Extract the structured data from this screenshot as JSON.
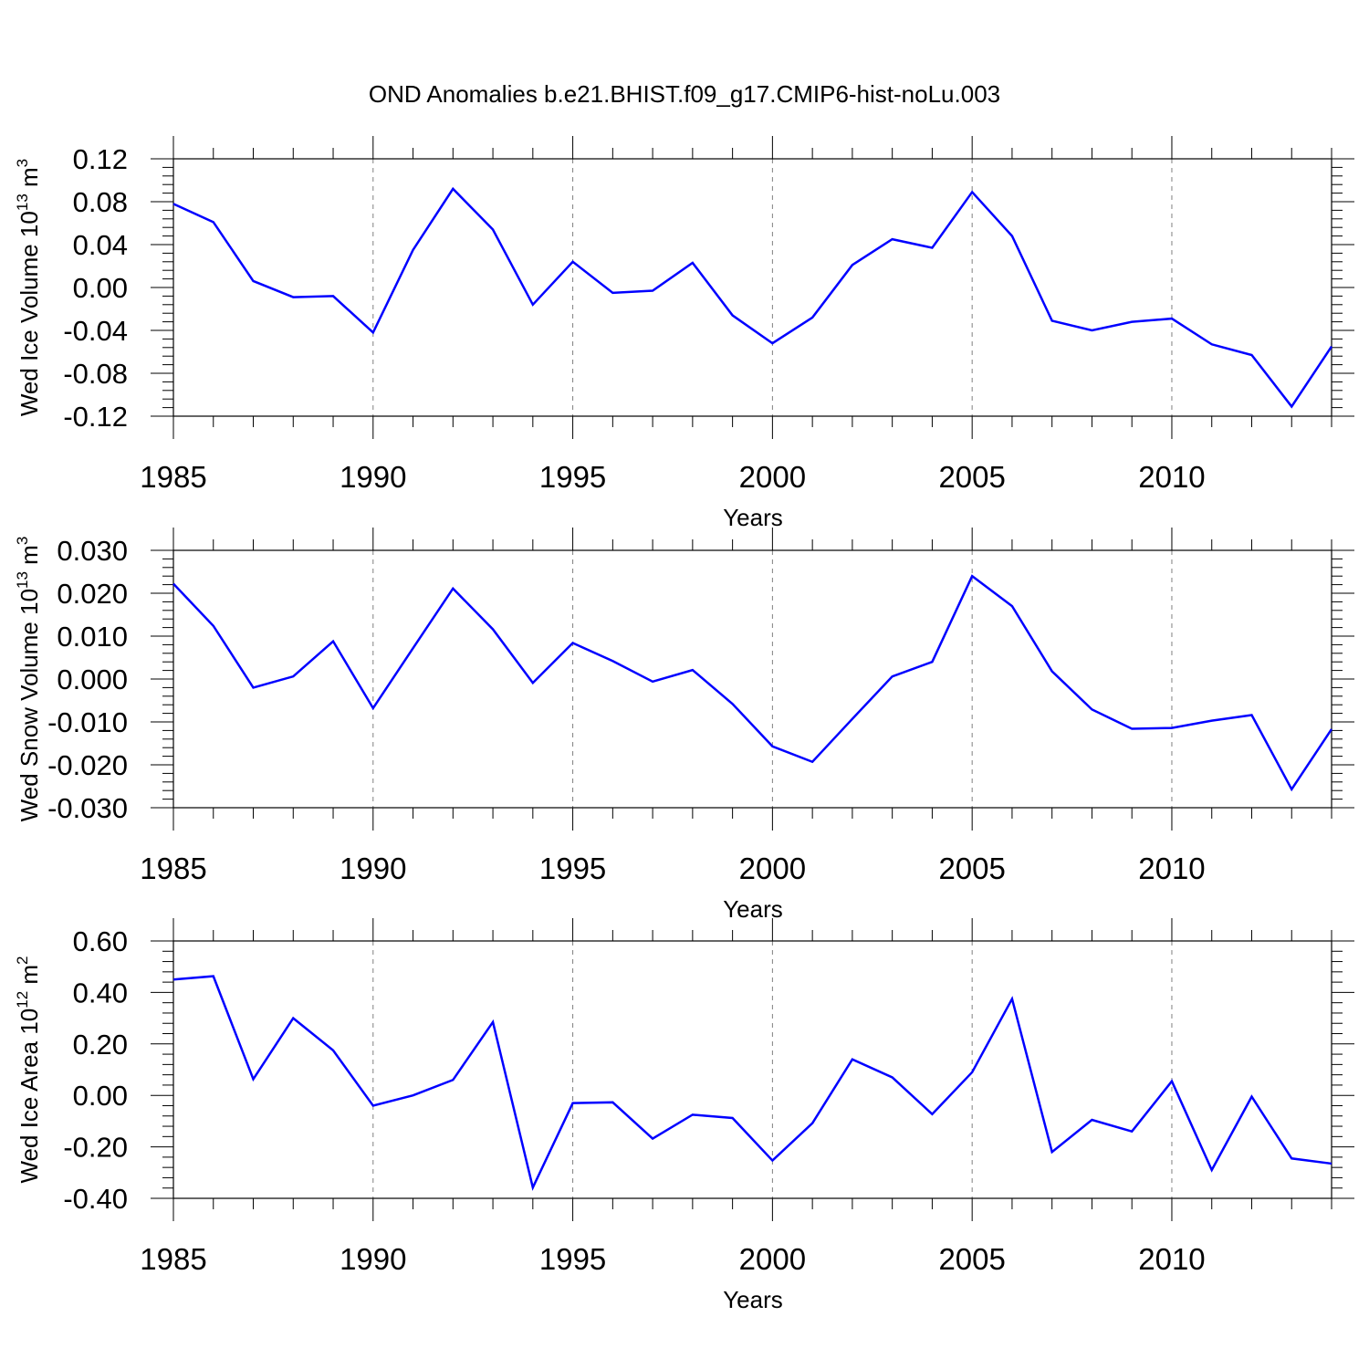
{
  "title": "OND Anomalies b.e21.BHIST.f09_g17.CMIP6-hist-noLu.003",
  "colors": {
    "series": "#0000ff",
    "axis": "#000000",
    "grid": "#808080"
  },
  "chart_data": [
    {
      "type": "line",
      "ylabel": {
        "text": "Wed Ice Volume 10",
        "exp": "13",
        "unit": " m",
        "unit_exp": "3"
      },
      "xlabel": "Years",
      "xlim": [
        1985,
        2014
      ],
      "ylim": [
        -0.12,
        0.12
      ],
      "xticks": [
        "1985",
        "1990",
        "1995",
        "2000",
        "2005",
        "2010"
      ],
      "yticks": [
        "0.12",
        "0.08",
        "0.04",
        "0.00",
        "-0.04",
        "-0.08",
        "-0.12"
      ],
      "ytick_values": [
        0.12,
        0.08,
        0.04,
        0.0,
        -0.04,
        -0.08,
        -0.12
      ],
      "grid": "dashed vertical at major x ticks",
      "series": [
        {
          "x": [
            1985,
            1986,
            1987,
            1988,
            1989,
            1990,
            1991,
            1992,
            1993,
            1994,
            1995,
            1996,
            1997,
            1998,
            1999,
            2000,
            2001,
            2002,
            2003,
            2004,
            2005,
            2006,
            2007,
            2008,
            2009,
            2010,
            2011,
            2012,
            2013,
            2014
          ],
          "values": [
            0.078,
            0.061,
            0.006,
            -0.009,
            -0.008,
            -0.042,
            0.035,
            0.092,
            0.054,
            -0.016,
            0.024,
            -0.005,
            -0.003,
            0.023,
            -0.026,
            -0.052,
            -0.028,
            0.021,
            0.045,
            0.037,
            0.089,
            0.048,
            -0.031,
            -0.04,
            -0.032,
            -0.029,
            -0.053,
            -0.063,
            -0.111,
            -0.055
          ]
        }
      ]
    },
    {
      "type": "line",
      "ylabel": {
        "text": "Wed Snow Volume 10",
        "exp": "13",
        "unit": " m",
        "unit_exp": "3"
      },
      "xlabel": "Years",
      "xlim": [
        1985,
        2014
      ],
      "ylim": [
        -0.03,
        0.03
      ],
      "xticks": [
        "1985",
        "1990",
        "1995",
        "2000",
        "2005",
        "2010"
      ],
      "yticks": [
        "0.030",
        "0.020",
        "0.010",
        "0.000",
        "-0.010",
        "-0.020",
        "-0.030"
      ],
      "ytick_values": [
        0.03,
        0.02,
        0.01,
        0.0,
        -0.01,
        -0.02,
        -0.03
      ],
      "grid": "dashed vertical at major x ticks",
      "series": [
        {
          "x": [
            1985,
            1986,
            1987,
            1988,
            1989,
            1990,
            1991,
            1992,
            1993,
            1994,
            1995,
            1996,
            1997,
            1998,
            1999,
            2000,
            2001,
            2002,
            2003,
            2004,
            2005,
            2006,
            2007,
            2008,
            2009,
            2010,
            2011,
            2012,
            2013,
            2014
          ],
          "values": [
            0.0222,
            0.0124,
            -0.002,
            0.0006,
            0.0088,
            -0.0068,
            0.0072,
            0.0211,
            0.0116,
            -0.0009,
            0.0084,
            0.0042,
            -0.0006,
            0.0021,
            -0.0058,
            -0.0157,
            -0.0193,
            -0.0093,
            0.0006,
            0.004,
            0.024,
            0.017,
            0.0018,
            -0.0071,
            -0.0116,
            -0.0114,
            -0.0097,
            -0.0084,
            -0.0257,
            -0.0117
          ]
        }
      ]
    },
    {
      "type": "line",
      "ylabel": {
        "text": "Wed Ice Area 10",
        "exp": "12",
        "unit": " m",
        "unit_exp": "2"
      },
      "xlabel": "Years",
      "xlim": [
        1985,
        2014
      ],
      "ylim": [
        -0.4,
        0.6
      ],
      "xticks": [
        "1985",
        "1990",
        "1995",
        "2000",
        "2005",
        "2010"
      ],
      "yticks": [
        "0.60",
        "0.40",
        "0.20",
        "0.00",
        "-0.20",
        "-0.40"
      ],
      "ytick_values": [
        0.6,
        0.4,
        0.2,
        0.0,
        -0.2,
        -0.4
      ],
      "grid": "dashed vertical at major x ticks",
      "series": [
        {
          "x": [
            1985,
            1986,
            1987,
            1988,
            1989,
            1990,
            1991,
            1992,
            1993,
            1994,
            1995,
            1996,
            1997,
            1998,
            1999,
            2000,
            2001,
            2002,
            2003,
            2004,
            2005,
            2006,
            2007,
            2008,
            2009,
            2010,
            2011,
            2012,
            2013,
            2014
          ],
          "values": [
            0.45,
            0.463,
            0.063,
            0.3,
            0.175,
            -0.04,
            0.0,
            0.06,
            0.285,
            -0.358,
            -0.03,
            -0.027,
            -0.168,
            -0.075,
            -0.088,
            -0.253,
            -0.108,
            0.14,
            0.07,
            -0.073,
            0.09,
            0.375,
            -0.22,
            -0.095,
            -0.14,
            0.055,
            -0.29,
            -0.005,
            -0.245,
            -0.265
          ]
        }
      ]
    }
  ]
}
